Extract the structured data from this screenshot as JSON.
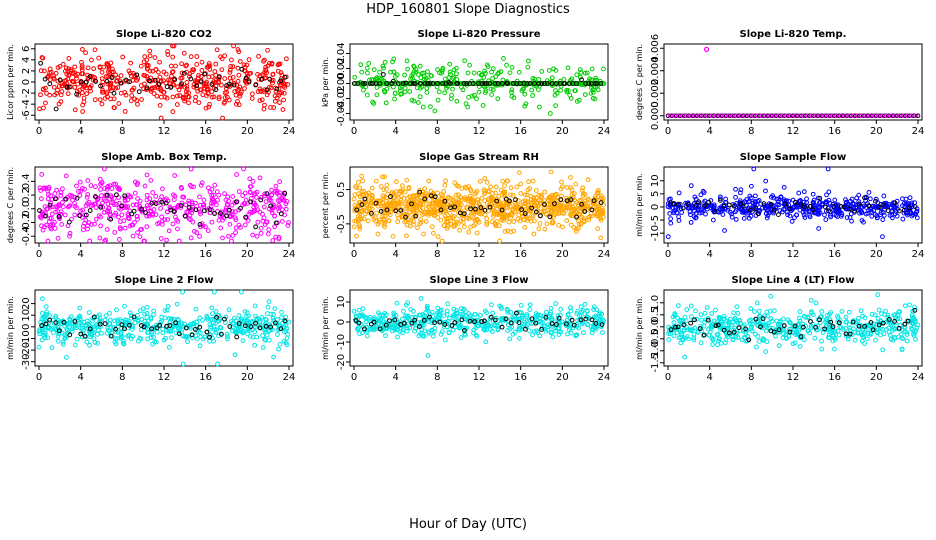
{
  "page": {
    "title": "HDP_160801  Slope Diagnostics",
    "xlabel": "Hour of Day (UTC)"
  },
  "chart_data": [
    {
      "type": "scatter",
      "title": "Slope Li-820 CO2",
      "ylabel": "Licor ppm per min.",
      "xlim": [
        0,
        24
      ],
      "ylim": [
        -6.5,
        6.5
      ],
      "xticks": [
        0,
        4,
        8,
        12,
        16,
        20,
        24
      ],
      "yticks": [
        -6,
        -4,
        -2,
        0,
        2,
        4,
        6
      ],
      "ytick_labels": [
        "-6",
        "-4",
        "-2",
        "0",
        "2",
        "4",
        "6"
      ],
      "color": "#ff0000",
      "series_style": "noisy",
      "spread": 2.2,
      "max_abs": 6.5
    },
    {
      "type": "scatter",
      "title": "Slope Li-820 Pressure",
      "ylabel": "kPa per min.",
      "xlim": [
        0,
        24
      ],
      "ylim": [
        -0.046,
        0.05
      ],
      "xticks": [
        0,
        4,
        8,
        12,
        16,
        20,
        24
      ],
      "yticks": [
        -0.04,
        -0.02,
        0.0,
        0.02,
        0.04
      ],
      "ytick_labels": [
        "-0.04",
        "-0.02",
        "0.00",
        "0.02",
        "0.04"
      ],
      "color": "#00cc00",
      "series_style": "pressure",
      "spread": 0.014,
      "max_abs": 0.045
    },
    {
      "type": "scatter",
      "title": "Slope Li-820 Temp.",
      "ylabel": "degrees C per min.",
      "xlim": [
        0,
        24
      ],
      "ylim": [
        -0.0002,
        0.0062
      ],
      "xticks": [
        0,
        4,
        8,
        12,
        16,
        20,
        24
      ],
      "yticks": [
        0.0,
        0.002,
        0.004,
        0.006
      ],
      "ytick_labels": [
        "0.000",
        "0.002",
        "0.004",
        "0.006"
      ],
      "color": "#ff00ff",
      "series_style": "temp",
      "spread": 0,
      "max_abs": 0.006,
      "outlier": {
        "x": 3.7,
        "y": 0.0059
      }
    },
    {
      "type": "scatter",
      "title": "Slope Amb. Box Temp.",
      "ylabel": "degrees C per min.",
      "xlim": [
        0,
        24
      ],
      "ylim": [
        -0.47,
        0.58
      ],
      "xticks": [
        0,
        4,
        8,
        12,
        16,
        20,
        24
      ],
      "yticks": [
        -0.4,
        -0.2,
        0.0,
        0.2,
        0.4
      ],
      "ytick_labels": [
        "-0.4",
        "-0.2",
        "0.0",
        "0.2",
        "0.4"
      ],
      "color": "#ff00ff",
      "series_style": "noisy",
      "spread": 0.2,
      "max_abs": 0.55
    },
    {
      "type": "scatter",
      "title": "Slope Gas Stream RH",
      "ylabel": "percent per min.",
      "xlim": [
        0,
        24
      ],
      "ylim": [
        -1.0,
        1.1
      ],
      "xticks": [
        0,
        4,
        8,
        12,
        16,
        20,
        24
      ],
      "yticks": [
        -0.5,
        0.5
      ],
      "ytick_labels": [
        "-0.5",
        "0.5"
      ],
      "color": "#ffa500",
      "series_style": "dense",
      "spread": 0.3,
      "max_abs": 1.0
    },
    {
      "type": "scatter",
      "title": "Slope Sample Flow",
      "ylabel": "ml/min per min.",
      "xlim": [
        0,
        24
      ],
      "ylim": [
        -13,
        14.5
      ],
      "xticks": [
        0,
        4,
        8,
        12,
        16,
        20,
        24
      ],
      "yticks": [
        -10,
        -5,
        0,
        5,
        10
      ],
      "ytick_labels": [
        "-10",
        "-5",
        "0",
        "5",
        "10"
      ],
      "color": "#0000ff",
      "series_style": "flow",
      "spread": 2.0,
      "max_abs": 13
    },
    {
      "type": "scatter",
      "title": "Slope Line 2 Flow",
      "ylabel": "ml/min per min.",
      "xlim": [
        0,
        24
      ],
      "ylim": [
        -32,
        30
      ],
      "xticks": [
        0,
        4,
        8,
        12,
        16,
        20,
        24
      ],
      "yticks": [
        -30,
        -20,
        -10,
        0,
        10,
        20
      ],
      "ytick_labels": [
        "-30",
        "-20",
        "-10",
        "0",
        "10",
        "20"
      ],
      "color": "#00e5e5",
      "series_style": "noisy",
      "spread": 7,
      "max_abs": 29
    },
    {
      "type": "scatter",
      "title": "Slope Line 3 Flow",
      "ylabel": "ml/min per min.",
      "xlim": [
        0,
        24
      ],
      "ylim": [
        -21,
        15
      ],
      "xticks": [
        0,
        4,
        8,
        12,
        16,
        20,
        24
      ],
      "yticks": [
        -20,
        -10,
        0,
        10
      ],
      "ytick_labels": [
        "-20",
        "-10",
        "0",
        "10"
      ],
      "color": "#00e5e5",
      "series_style": "noisy",
      "spread": 3.5,
      "max_abs": 15
    },
    {
      "type": "scatter",
      "title": "Slope Line 4 (LT) Flow",
      "ylabel": "ml/min per min.",
      "xlim": [
        0,
        24
      ],
      "ylim": [
        -1.55,
        1.45
      ],
      "xticks": [
        0,
        4,
        8,
        12,
        16,
        20,
        24
      ],
      "yticks": [
        -1.5,
        -1.0,
        -0.5,
        0.0,
        0.5,
        1.0
      ],
      "ytick_labels": [
        "-1.5",
        "-1.0",
        "-0.5",
        "0.0",
        "0.5",
        "1.0"
      ],
      "color": "#00e5e5",
      "series_style": "noisy",
      "spread": 0.35,
      "max_abs": 1.45
    }
  ]
}
